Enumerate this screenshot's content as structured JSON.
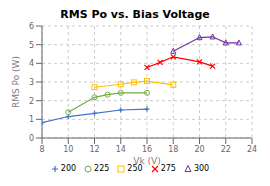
{
  "chart_data": {
    "type": "line",
    "title": "RMS Po vs. Bias Voltage",
    "xlabel": "Vk (V)",
    "ylabel": "RMS Po (W)",
    "xlim": [
      8,
      24
    ],
    "ylim": [
      0,
      6
    ],
    "xticks": [
      8,
      10,
      12,
      14,
      16,
      18,
      20,
      22,
      24
    ],
    "yticks": [
      0,
      1,
      2,
      3,
      4,
      5,
      6
    ],
    "grid": true,
    "legend": "bottom",
    "series": [
      {
        "name": "200",
        "color": "#4472C4",
        "marker": "plus",
        "x": [
          8,
          10,
          12,
          14,
          16
        ],
        "values": [
          0.82,
          1.15,
          1.32,
          1.5,
          1.55
        ]
      },
      {
        "name": "225",
        "color": "#70AD47",
        "marker": "circle",
        "x": [
          10,
          12,
          13,
          14,
          16
        ],
        "values": [
          1.38,
          2.18,
          2.32,
          2.42,
          2.42
        ]
      },
      {
        "name": "250",
        "color": "#FFC000",
        "marker": "square",
        "x": [
          12,
          14,
          15,
          16,
          18
        ],
        "values": [
          2.72,
          2.88,
          2.98,
          3.05,
          2.85
        ]
      },
      {
        "name": "275",
        "color": "#FF0000",
        "marker": "cross",
        "x": [
          16,
          17,
          18,
          20,
          21
        ],
        "values": [
          3.78,
          4.05,
          4.35,
          4.08,
          3.85
        ]
      },
      {
        "name": "300",
        "color": "#7030A0",
        "marker": "triangle",
        "x": [
          18,
          20,
          21,
          22,
          23
        ],
        "values": [
          4.65,
          5.38,
          5.42,
          5.1,
          5.1
        ]
      }
    ]
  }
}
